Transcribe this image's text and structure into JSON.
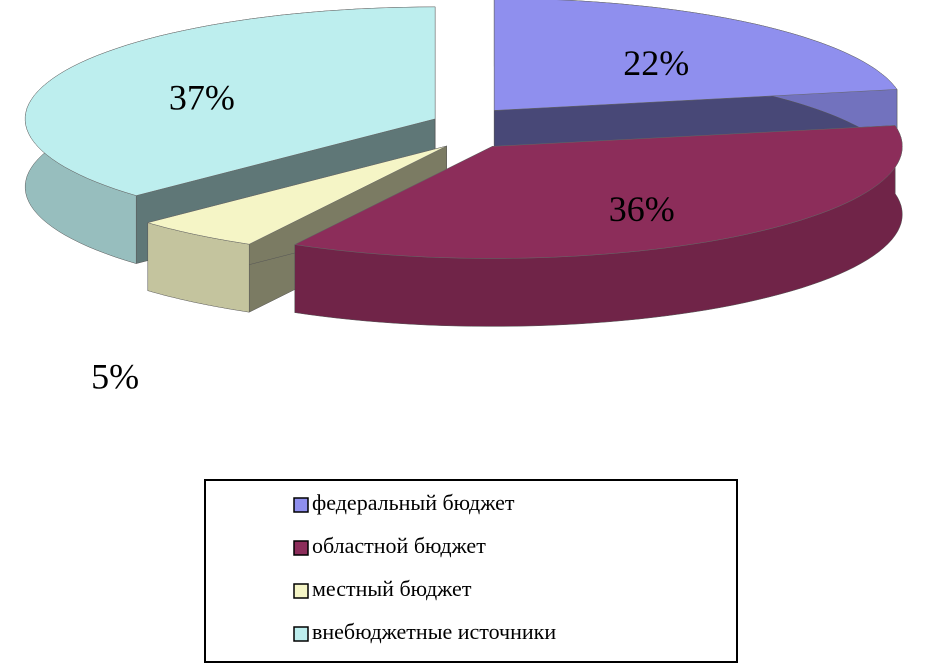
{
  "chart_data": {
    "type": "pie",
    "categories": [
      "федеральный бюджет",
      "областной бюджет",
      "местный бюджет",
      "внебюджетные источники"
    ],
    "values": [
      22,
      36,
      5,
      37
    ],
    "value_labels": [
      "22%",
      "36%",
      "5%",
      "37%"
    ],
    "colors": [
      "#8f8fee",
      "#8c2d5a",
      "#f5f5c6",
      "#bdeeee"
    ],
    "legend": "bottom"
  }
}
